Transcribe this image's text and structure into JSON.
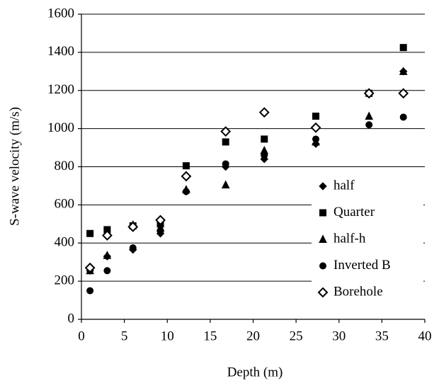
{
  "chart_data": {
    "type": "scatter",
    "x_label": "Depth (m)",
    "y_label": "S-wave velocity (m/s)",
    "x": [
      1,
      3,
      6,
      9.2,
      12.2,
      16.8,
      21.3,
      27.3,
      33.5,
      37.5
    ],
    "series": [
      {
        "name": "half",
        "marker": "diamond",
        "filled": true,
        "color": "#000000",
        "values": [
          255,
          330,
          365,
          450,
          670,
          800,
          840,
          920,
          1190,
          1300
        ]
      },
      {
        "name": "Quarter",
        "marker": "square",
        "filled": true,
        "color": "#000000",
        "values": [
          450,
          470,
          490,
          500,
          805,
          930,
          945,
          1065,
          1185,
          1425
        ]
      },
      {
        "name": "half-h",
        "marker": "triangle",
        "filled": true,
        "color": "#000000",
        "values": [
          255,
          335,
          495,
          480,
          680,
          705,
          885,
          930,
          1065,
          1300
        ]
      },
      {
        "name": "Inverted B",
        "marker": "circle",
        "filled": true,
        "color": "#000000",
        "values": [
          150,
          255,
          375,
          465,
          670,
          815,
          860,
          945,
          1020,
          1060
        ]
      },
      {
        "name": "Borehole",
        "marker": "diamond",
        "filled": false,
        "color": "#000000",
        "values": [
          270,
          440,
          485,
          520,
          750,
          985,
          1085,
          1005,
          1185,
          1185
        ]
      }
    ],
    "xlim": [
      0,
      40
    ],
    "xticks": [
      0,
      5,
      10,
      15,
      20,
      25,
      30,
      35,
      40
    ],
    "ylim": [
      0,
      1600
    ],
    "yticks": [
      0,
      200,
      400,
      600,
      800,
      1000,
      1200,
      1400,
      1600
    ],
    "grid": true,
    "legend": "right"
  }
}
